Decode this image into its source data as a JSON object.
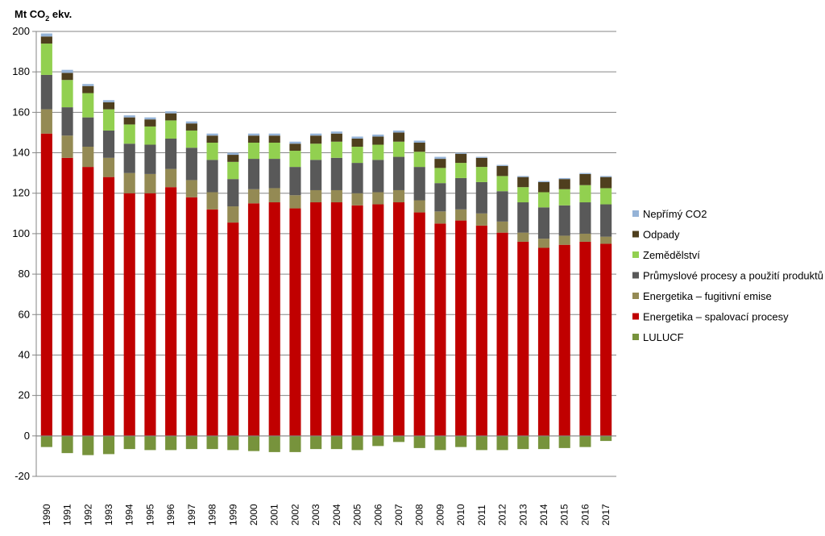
{
  "chart_data": {
    "type": "bar",
    "stacked": true,
    "unit_label": {
      "main": "Mt CO",
      "sub": "2",
      "tail": " ekv."
    },
    "ylim": [
      -20,
      200
    ],
    "yticks": [
      -20,
      0,
      20,
      40,
      60,
      80,
      100,
      120,
      140,
      160,
      180,
      200
    ],
    "grid": true,
    "legend_position": "right",
    "categories": [
      "1990",
      "1991",
      "1992",
      "1993",
      "1994",
      "1995",
      "1996",
      "1997",
      "1998",
      "1999",
      "2000",
      "2001",
      "2002",
      "2003",
      "2004",
      "2005",
      "2006",
      "2007",
      "2008",
      "2009",
      "2010",
      "2011",
      "2012",
      "2013",
      "2014",
      "2015",
      "2016",
      "2017"
    ],
    "series": [
      {
        "name": "LULUCF",
        "color": "#77933C",
        "values": [
          -5.5,
          -8.5,
          -9.5,
          -9.0,
          -6.5,
          -7.0,
          -7.0,
          -6.5,
          -6.5,
          -7.0,
          -7.5,
          -8.0,
          -8.0,
          -6.5,
          -6.5,
          -7.0,
          -5.0,
          -3.0,
          -6.0,
          -7.0,
          -5.5,
          -7.0,
          -7.0,
          -6.5,
          -6.5,
          -6.0,
          -5.5,
          -2.5
        ]
      },
      {
        "name": "Energetika – spalovací procesy",
        "color": "#C00000",
        "values": [
          149.5,
          137.5,
          133.0,
          128.0,
          120.0,
          120.0,
          123.0,
          118.0,
          112.0,
          105.5,
          115.0,
          115.5,
          112.5,
          115.5,
          115.5,
          114.0,
          114.5,
          115.5,
          110.5,
          105.0,
          106.5,
          104.0,
          100.5,
          96.0,
          93.0,
          94.5,
          96.0,
          95.0
        ]
      },
      {
        "name": "Energetika – fugitivní emise",
        "color": "#948A54",
        "values": [
          12.0,
          11.0,
          10.0,
          9.5,
          10.0,
          9.5,
          9.0,
          8.5,
          8.5,
          8.0,
          7.0,
          7.0,
          6.5,
          6.0,
          6.0,
          6.0,
          6.0,
          6.0,
          6.0,
          6.0,
          5.5,
          6.0,
          5.5,
          4.5,
          4.5,
          4.5,
          4.0,
          3.5
        ]
      },
      {
        "name": "Průmyslové procesy a použití produktů",
        "color": "#595959",
        "values": [
          17.0,
          14.0,
          14.5,
          13.5,
          14.5,
          14.5,
          15.0,
          16.0,
          16.0,
          13.5,
          15.0,
          14.5,
          14.0,
          15.0,
          16.0,
          15.0,
          16.0,
          16.5,
          16.5,
          14.0,
          15.5,
          15.5,
          15.0,
          15.0,
          15.5,
          15.0,
          15.5,
          16.0
        ]
      },
      {
        "name": "Zemědělství",
        "color": "#92D050",
        "values": [
          15.5,
          13.5,
          12.0,
          10.5,
          9.5,
          9.0,
          9.0,
          8.5,
          8.5,
          8.5,
          8.0,
          8.0,
          8.0,
          8.0,
          8.0,
          8.0,
          7.5,
          7.5,
          7.5,
          7.5,
          7.5,
          7.5,
          7.5,
          7.5,
          7.5,
          8.0,
          8.5,
          8.0
        ]
      },
      {
        "name": "Odpady",
        "color": "#4F3F1E",
        "values": [
          3.5,
          3.5,
          3.5,
          3.5,
          3.5,
          3.5,
          3.5,
          3.5,
          3.5,
          3.5,
          3.5,
          3.5,
          3.5,
          4.0,
          4.0,
          4.0,
          4.0,
          4.5,
          4.5,
          4.5,
          4.5,
          4.5,
          5.0,
          5.0,
          5.0,
          5.0,
          5.5,
          5.5
        ]
      },
      {
        "name": "Nepřímý CO2",
        "color": "#95B3D7",
        "values": [
          1.5,
          1.5,
          1.0,
          1.0,
          1.0,
          1.0,
          1.0,
          1.0,
          1.0,
          1.0,
          1.0,
          1.0,
          1.0,
          1.0,
          1.0,
          1.0,
          1.0,
          1.0,
          1.0,
          1.0,
          0.5,
          0.5,
          0.5,
          0.5,
          0.5,
          0.5,
          0.5,
          0.5
        ]
      }
    ]
  }
}
